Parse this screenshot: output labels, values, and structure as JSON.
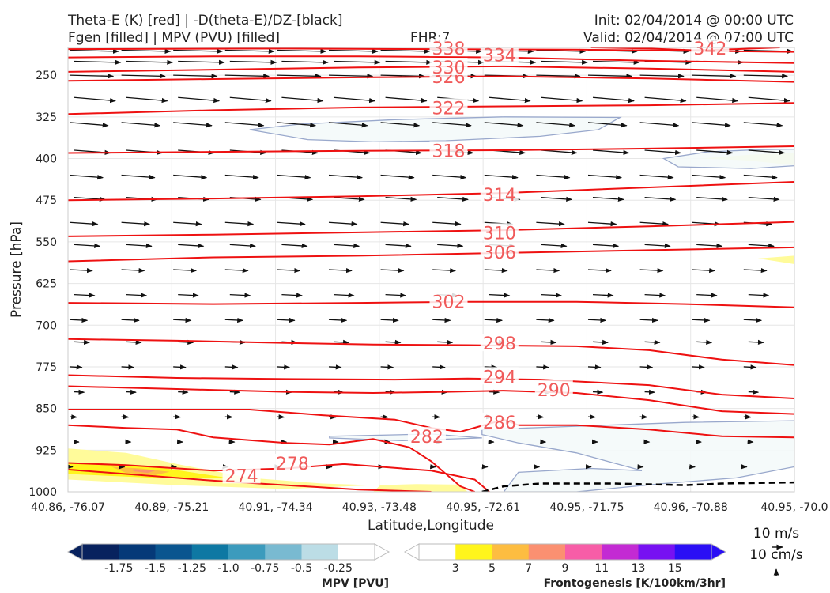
{
  "header": {
    "title_line1": "Theta-E (K) [red] | -D(theta-E)/DZ-[black]",
    "title_line2": "Fgen [filled] | MPV (PVU) [filled]",
    "fhr": "FHR:7",
    "init": "Init: 02/04/2014 @ 00:00 UTC",
    "valid": "Valid: 02/04/2014 @ 07:00 UTC"
  },
  "chart_data": {
    "type": "cross-section",
    "ylabel": "Pressure [hPa]",
    "xlabel": "Latitude,Longitude",
    "y_range": [
      1000,
      200
    ],
    "y_ticks": [
      250,
      325,
      400,
      475,
      550,
      625,
      700,
      775,
      850,
      925,
      1000
    ],
    "x_ticks": [
      "40.86, -76.07",
      "40.89, -75.21",
      "40.91, -74.34",
      "40.93, -73.48",
      "40.95, -72.61",
      "40.95, -71.75",
      "40.96, -70.88",
      "40.95, -70.0"
    ],
    "theta_e_contours": [
      {
        "label": "274",
        "points": [
          [
            0,
            960
          ],
          [
            0.08,
            968
          ],
          [
            0.2,
            980
          ],
          [
            0.3,
            988
          ],
          [
            0.4,
            996
          ],
          [
            0.5,
            1000
          ]
        ]
      },
      {
        "label": "278",
        "points": [
          [
            0,
            948
          ],
          [
            0.08,
            952
          ],
          [
            0.2,
            962
          ],
          [
            0.3,
            958
          ],
          [
            0.38,
            950
          ],
          [
            0.5,
            962
          ],
          [
            0.56,
            978
          ],
          [
            0.58,
            1000
          ]
        ]
      },
      {
        "label": "282",
        "points": [
          [
            0,
            880
          ],
          [
            0.08,
            885
          ],
          [
            0.15,
            888
          ],
          [
            0.2,
            902
          ],
          [
            0.3,
            912
          ],
          [
            0.36,
            915
          ],
          [
            0.42,
            905
          ],
          [
            0.47,
            920
          ],
          [
            0.5,
            945
          ],
          [
            0.54,
            990
          ],
          [
            0.56,
            1000
          ]
        ]
      },
      {
        "label": "286",
        "points": [
          [
            0,
            852
          ],
          [
            0.15,
            852
          ],
          [
            0.25,
            852
          ],
          [
            0.35,
            862
          ],
          [
            0.45,
            870
          ],
          [
            0.5,
            885
          ],
          [
            0.54,
            892
          ],
          [
            0.6,
            870
          ],
          [
            0.62,
            880
          ],
          [
            0.7,
            880
          ],
          [
            0.8,
            888
          ],
          [
            0.9,
            900
          ],
          [
            1,
            902
          ]
        ]
      },
      {
        "label": "290",
        "points": [
          [
            0,
            810
          ],
          [
            0.15,
            815
          ],
          [
            0.3,
            820
          ],
          [
            0.42,
            822
          ],
          [
            0.52,
            820
          ],
          [
            0.6,
            818
          ],
          [
            0.7,
            822
          ],
          [
            0.8,
            835
          ],
          [
            0.9,
            855
          ],
          [
            1,
            860
          ]
        ]
      },
      {
        "label": "294",
        "points": [
          [
            0,
            790
          ],
          [
            0.15,
            795
          ],
          [
            0.3,
            797
          ],
          [
            0.45,
            798
          ],
          [
            0.55,
            796
          ],
          [
            0.65,
            798
          ],
          [
            0.8,
            808
          ],
          [
            0.9,
            825
          ],
          [
            1,
            832
          ]
        ]
      },
      {
        "label": "298",
        "points": [
          [
            0,
            725
          ],
          [
            0.15,
            728
          ],
          [
            0.3,
            732
          ],
          [
            0.42,
            735
          ],
          [
            0.55,
            736
          ],
          [
            0.7,
            738
          ],
          [
            0.8,
            745
          ],
          [
            0.9,
            762
          ],
          [
            1,
            772
          ]
        ]
      },
      {
        "label": "302",
        "points": [
          [
            0,
            660
          ],
          [
            0.2,
            662
          ],
          [
            0.4,
            660
          ],
          [
            0.55,
            658
          ],
          [
            0.7,
            658
          ],
          [
            0.85,
            662
          ],
          [
            1,
            668
          ]
        ]
      },
      {
        "label": "306",
        "points": [
          [
            0,
            585
          ],
          [
            0.2,
            578
          ],
          [
            0.4,
            575
          ],
          [
            0.6,
            570
          ],
          [
            0.8,
            565
          ],
          [
            1,
            560
          ]
        ]
      },
      {
        "label": "310",
        "points": [
          [
            0,
            540
          ],
          [
            0.2,
            537
          ],
          [
            0.4,
            533
          ],
          [
            0.6,
            529
          ],
          [
            0.8,
            522
          ],
          [
            1,
            514
          ]
        ]
      },
      {
        "label": "314",
        "points": [
          [
            0,
            475
          ],
          [
            0.2,
            472
          ],
          [
            0.4,
            468
          ],
          [
            0.6,
            462
          ],
          [
            0.8,
            452
          ],
          [
            1,
            442
          ]
        ]
      },
      {
        "label": "318",
        "points": [
          [
            0,
            390
          ],
          [
            0.2,
            388
          ],
          [
            0.4,
            386
          ],
          [
            0.6,
            385
          ],
          [
            0.8,
            382
          ],
          [
            1,
            378
          ]
        ]
      },
      {
        "label": "322",
        "points": [
          [
            0,
            320
          ],
          [
            0.2,
            313
          ],
          [
            0.4,
            308
          ],
          [
            0.6,
            306
          ],
          [
            0.8,
            304
          ],
          [
            1,
            300
          ]
        ]
      },
      {
        "label": "326",
        "points": [
          [
            0,
            260
          ],
          [
            0.2,
            257
          ],
          [
            0.4,
            254
          ],
          [
            0.6,
            252
          ],
          [
            0.8,
            256
          ],
          [
            1,
            262
          ]
        ]
      },
      {
        "label": "330",
        "points": [
          [
            0,
            244
          ],
          [
            0.2,
            240
          ],
          [
            0.4,
            236
          ],
          [
            0.6,
            234
          ],
          [
            0.8,
            238
          ],
          [
            1,
            244
          ]
        ]
      },
      {
        "label": "334",
        "points": [
          [
            0,
            218
          ],
          [
            0.2,
            216
          ],
          [
            0.4,
            216
          ],
          [
            0.6,
            218
          ],
          [
            0.8,
            224
          ],
          [
            1,
            228
          ]
        ]
      },
      {
        "label": "338",
        "points": [
          [
            0,
            203
          ],
          [
            0.3,
            202
          ],
          [
            0.5,
            203
          ],
          [
            0.7,
            204
          ],
          [
            1,
            208
          ]
        ]
      },
      {
        "label": "342",
        "points": [
          [
            0.72,
            200
          ],
          [
            0.8,
            202
          ],
          [
            0.86,
            205
          ],
          [
            0.92,
            203
          ],
          [
            0.98,
            200
          ]
        ]
      }
    ],
    "mpv_fill": {
      "label": "MPV [PVU]",
      "ticks": [
        "-1.75",
        "-1.5",
        "-1.25",
        "-1.0",
        "-0.75",
        "-0.5",
        "-0.25"
      ],
      "colors": [
        "#08225e",
        "#053978",
        "#0a558f",
        "#0e78a3",
        "#3c9bbd",
        "#79bad1",
        "#bcdde6",
        "#ffffff"
      ],
      "regions": [
        {
          "value": -0.25,
          "points": [
            [
              0.25,
              348
            ],
            [
              0.32,
              338
            ],
            [
              0.45,
              330
            ],
            [
              0.6,
              325
            ],
            [
              0.76,
              326
            ],
            [
              0.73,
              348
            ],
            [
              0.65,
              360
            ],
            [
              0.52,
              368
            ],
            [
              0.42,
              370
            ],
            [
              0.33,
              366
            ]
          ]
        },
        {
          "value": -0.25,
          "points": [
            [
              0.82,
              400
            ],
            [
              0.88,
              388
            ],
            [
              0.95,
              384
            ],
            [
              1,
              383
            ],
            [
              1,
              413
            ],
            [
              0.94,
              418
            ],
            [
              0.84,
              415
            ]
          ]
        },
        {
          "value": -0.25,
          "points": [
            [
              0.36,
              900
            ],
            [
              0.5,
              896
            ],
            [
              0.57,
              903
            ],
            [
              0.46,
              908
            ],
            [
              0.36,
              903
            ]
          ]
        },
        {
          "value": -0.25,
          "points": [
            [
              0.57,
              888
            ],
            [
              0.7,
              882
            ],
            [
              0.85,
              875
            ],
            [
              1,
              872
            ],
            [
              1,
              955
            ],
            [
              0.92,
              975
            ],
            [
              0.82,
              985
            ],
            [
              0.7,
              1000
            ],
            [
              0.6,
              1000
            ],
            [
              0.62,
              965
            ],
            [
              0.72,
              958
            ],
            [
              0.79,
              962
            ],
            [
              0.7,
              930
            ],
            [
              0.62,
              912
            ],
            [
              0.57,
              897
            ]
          ]
        }
      ]
    },
    "fgen_fill": {
      "label": "Frontogenesis [K/100km/3hr]",
      "ticks": [
        "3",
        "5",
        "7",
        "9",
        "11",
        "13",
        "15"
      ],
      "colors": [
        "#ffffff",
        "#fff51c",
        "#fdbd41",
        "#fb9071",
        "#f75da7",
        "#c32ad3",
        "#7711f2",
        "#2a0ff5"
      ],
      "regions": [
        {
          "value": 1.5,
          "points": [
            [
              0,
              922
            ],
            [
              0.08,
              930
            ],
            [
              0.15,
              950
            ],
            [
              0.25,
              975
            ],
            [
              0.35,
              985
            ],
            [
              0.42,
              988
            ],
            [
              0.3,
              995
            ],
            [
              0.15,
              988
            ],
            [
              0,
              978
            ]
          ]
        },
        {
          "value": 4,
          "points": [
            [
              0,
              948
            ],
            [
              0.07,
              950
            ],
            [
              0.12,
              955
            ],
            [
              0.17,
              965
            ],
            [
              0.22,
              975
            ],
            [
              0.12,
              975
            ],
            [
              0,
              968
            ]
          ]
        },
        {
          "value": 6,
          "points": [
            [
              0.06,
              955
            ],
            [
              0.1,
              958
            ],
            [
              0.14,
              964
            ],
            [
              0.12,
              970
            ],
            [
              0.08,
              966
            ]
          ]
        },
        {
          "value": 8,
          "points": [
            [
              0.09,
              959
            ],
            [
              0.12,
              962
            ],
            [
              0.11,
              966
            ],
            [
              0.09,
              963
            ]
          ]
        },
        {
          "value": 1.5,
          "points": [
            [
              0.42,
              1000
            ],
            [
              0.43,
              988
            ],
            [
              0.48,
              986
            ],
            [
              0.54,
              987
            ],
            [
              0.55,
              1000
            ]
          ]
        },
        {
          "value": 1.5,
          "points": [
            [
              0.87,
              400
            ],
            [
              0.94,
              393
            ],
            [
              1,
              390
            ],
            [
              1,
              412
            ],
            [
              0.93,
              403
            ]
          ]
        },
        {
          "value": 1.5,
          "points": [
            [
              0.95,
              580
            ],
            [
              1,
              575
            ],
            [
              1,
              590
            ]
          ]
        }
      ]
    },
    "dashed_line": {
      "points": [
        [
          0.57,
          1000
        ],
        [
          0.6,
          990
        ],
        [
          0.65,
          985
        ],
        [
          0.75,
          985
        ],
        [
          0.85,
          988
        ],
        [
          0.9,
          985
        ],
        [
          1,
          983
        ]
      ]
    },
    "wind_rows_hpa": [
      205,
      225,
      250,
      290,
      335,
      385,
      430,
      470,
      515,
      555,
      600,
      645,
      690,
      730,
      775,
      820,
      865,
      910,
      955
    ],
    "reference_vectors": {
      "horizontal": "10 m/s",
      "vertical": "10 cm/s"
    }
  }
}
